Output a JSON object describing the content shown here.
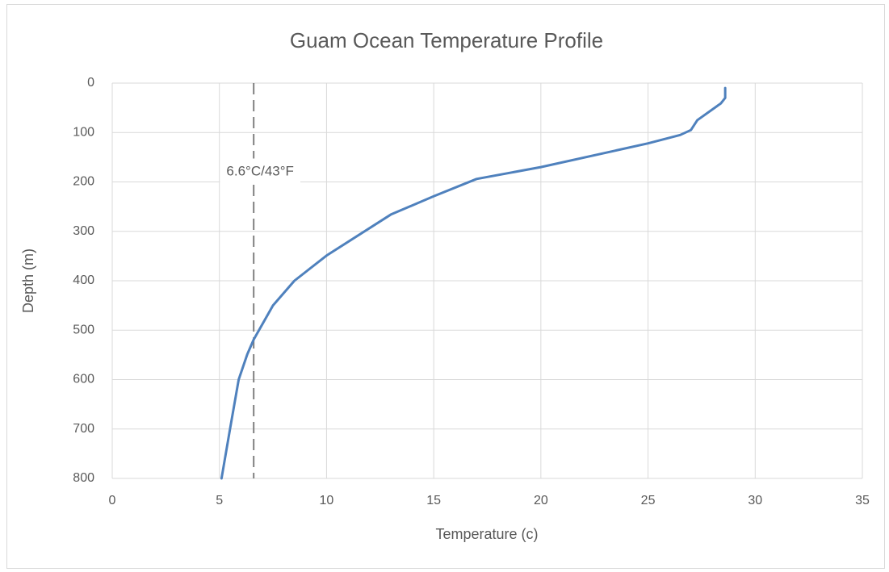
{
  "chart_data": {
    "type": "line",
    "title": "Guam Ocean Temperature Profile",
    "x_label": "Temperature (c)",
    "y_label": "Depth (m)",
    "x": [
      28.6,
      28.6,
      28.4,
      27.3,
      27.0,
      26.5,
      25.0,
      20.0,
      17.0,
      15.0,
      13.0,
      10.0,
      8.5,
      7.5,
      6.6,
      6.3,
      5.9,
      5.5,
      5.1
    ],
    "values": [
      10,
      30,
      41,
      75,
      95,
      105,
      122,
      170,
      194,
      229,
      266,
      349,
      400,
      450,
      519,
      549,
      600,
      699,
      800
    ],
    "color": "#4f81bd",
    "xlim": [
      0,
      35
    ],
    "xticks": [
      0,
      5,
      10,
      15,
      20,
      25,
      30,
      35
    ],
    "ylim": [
      0,
      800
    ],
    "yticks": [
      0,
      100,
      200,
      300,
      400,
      500,
      600,
      700,
      800
    ],
    "y_inverted": true,
    "grid": true,
    "annotation": {
      "text": "6.6°C/43°F",
      "x": 6.6,
      "color": "#7f7f7f"
    }
  }
}
